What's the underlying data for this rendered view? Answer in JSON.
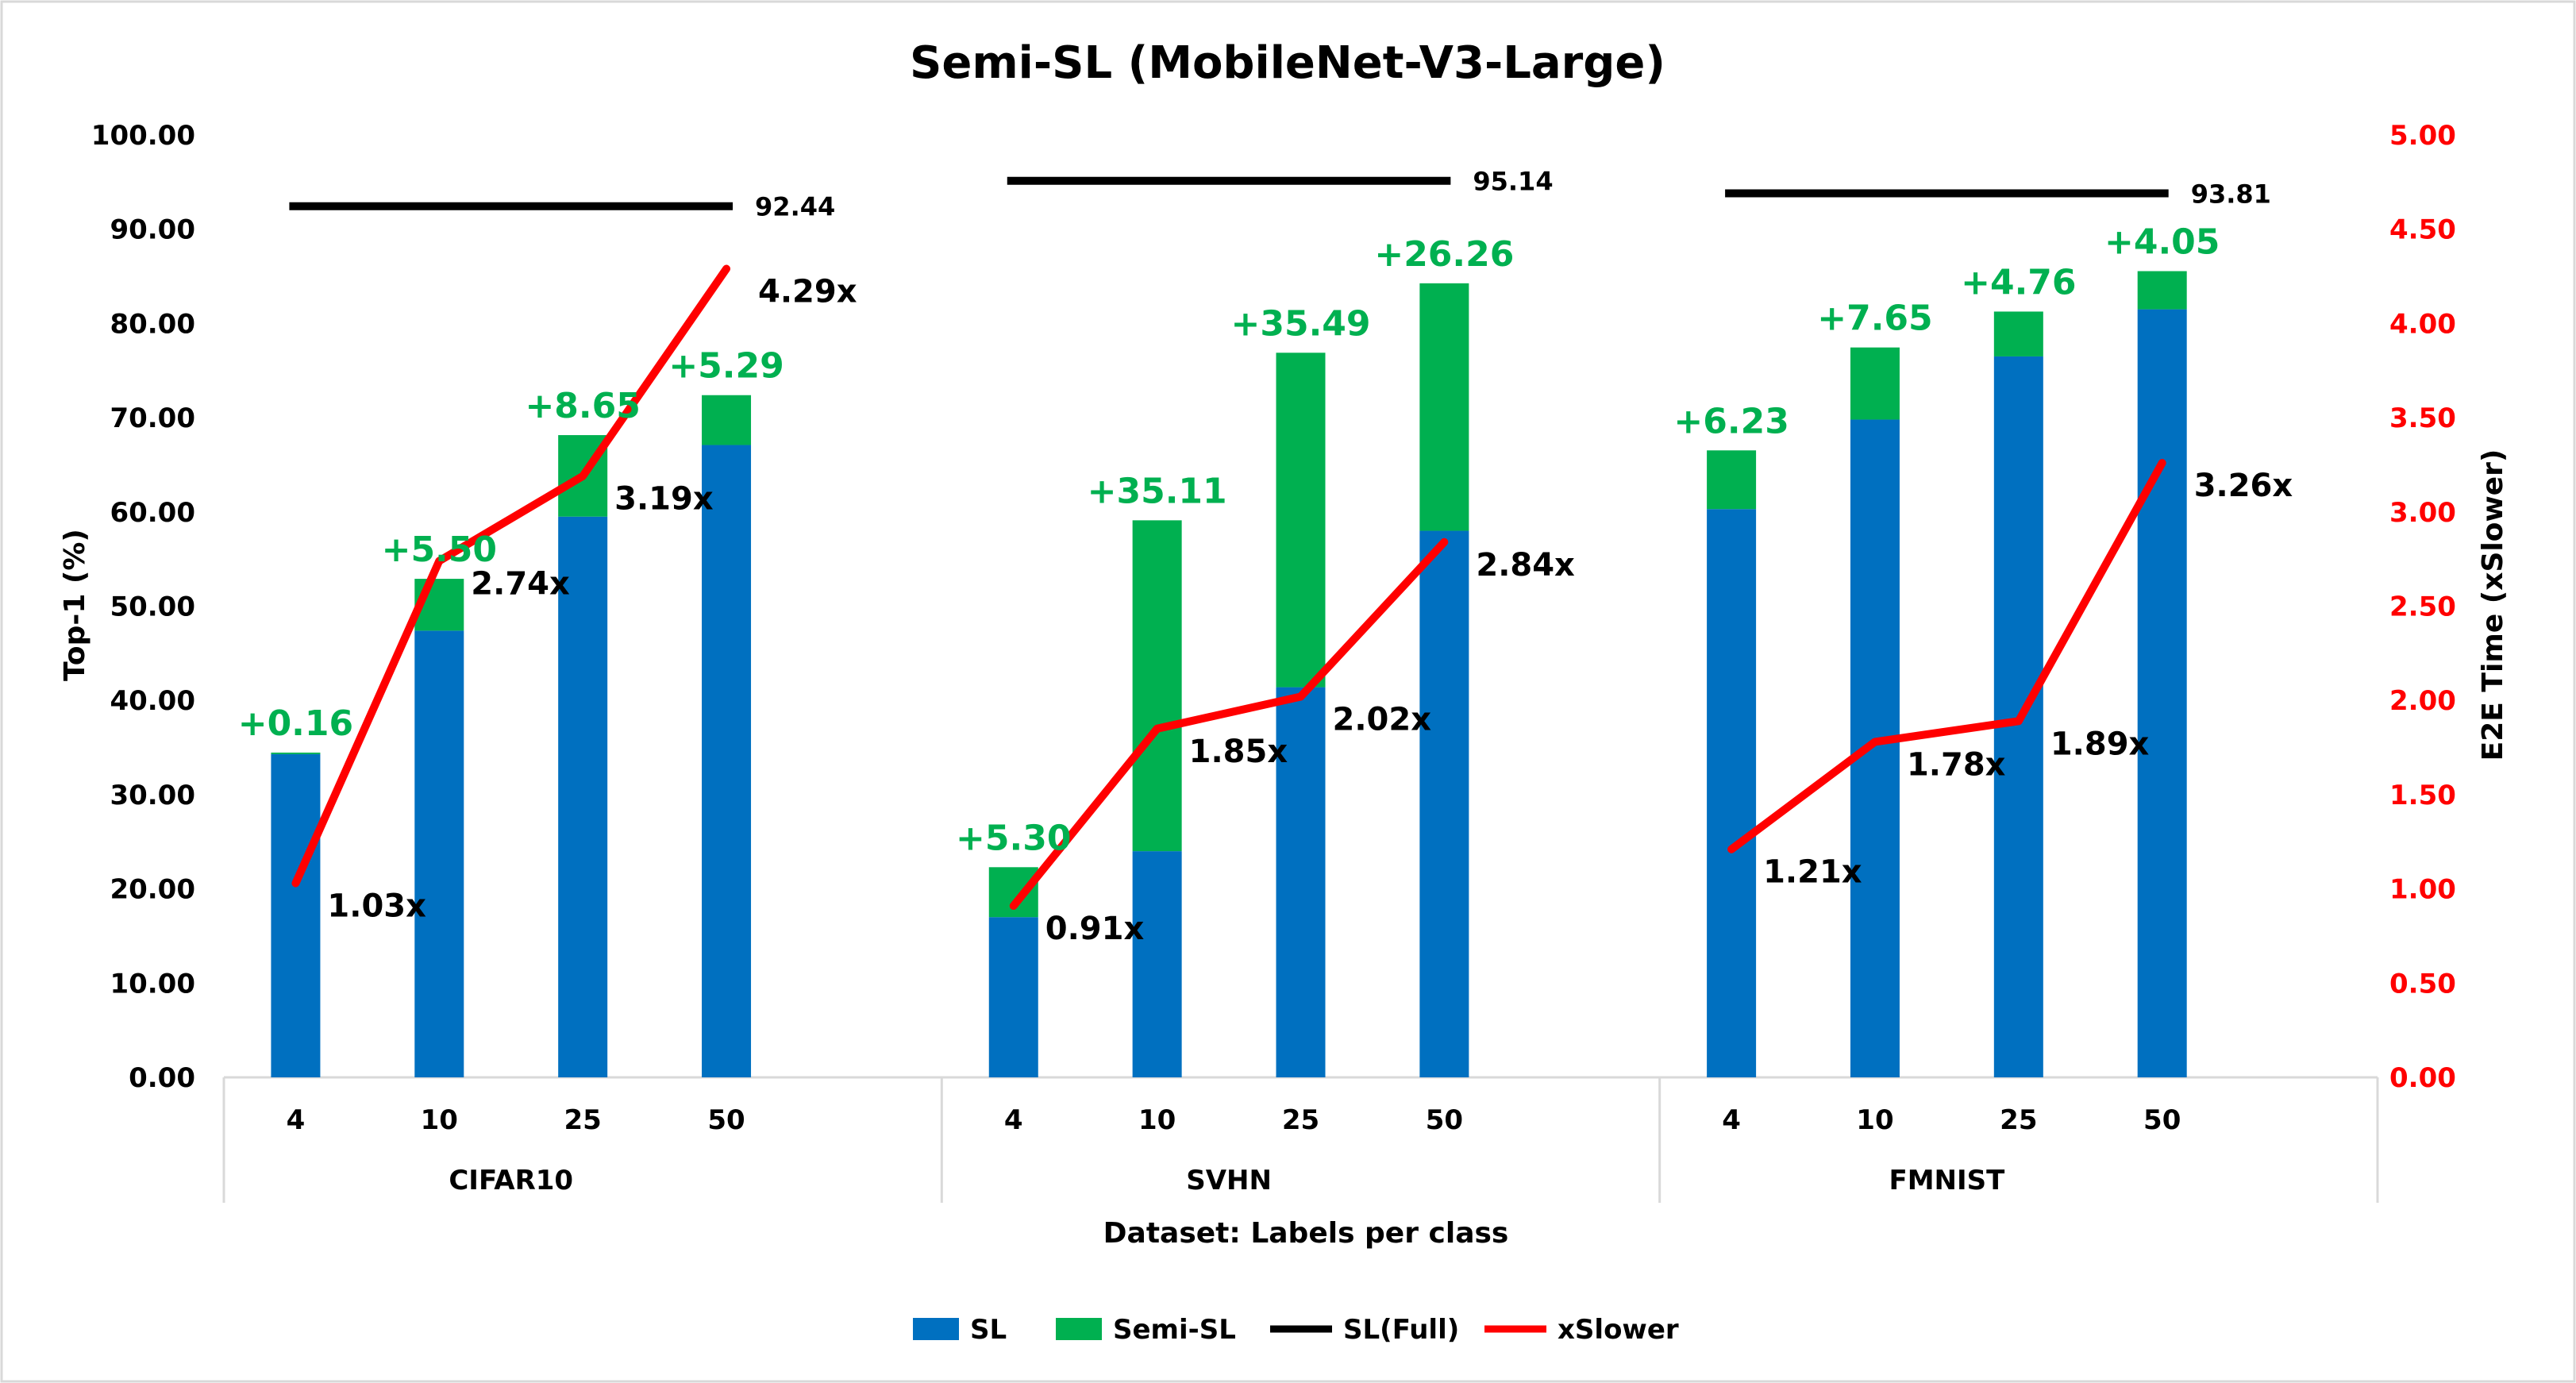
{
  "chart_data": {
    "type": "bar",
    "title": "Semi-SL (MobileNet-V3-Large)",
    "xlabel": "Dataset: Labels per class",
    "ylabel": "Top-1 (%)",
    "y2label": "E2E Time (xSlower)",
    "ylim": [
      0,
      100
    ],
    "y2lim": [
      0,
      5
    ],
    "yticks": [
      "0.00",
      "10.00",
      "20.00",
      "30.00",
      "40.00",
      "50.00",
      "60.00",
      "70.00",
      "80.00",
      "90.00",
      "100.00"
    ],
    "y2ticks": [
      "0.00",
      "0.50",
      "1.00",
      "1.50",
      "2.00",
      "2.50",
      "3.00",
      "3.50",
      "4.00",
      "4.50",
      "5.00"
    ],
    "grid": false,
    "legend_position": "bottom",
    "legend": [
      {
        "name": "SL",
        "color": "#0070c0",
        "kind": "bar"
      },
      {
        "name": "Semi-SL",
        "color": "#00b050",
        "kind": "bar"
      },
      {
        "name": "SL(Full)",
        "color": "#000000",
        "kind": "line"
      },
      {
        "name": "xSlower",
        "color": "#ff0000",
        "kind": "line"
      }
    ],
    "groups": [
      {
        "name": "CIFAR10",
        "categories": [
          "4",
          "10",
          "25",
          "50"
        ],
        "sl": [
          34.3,
          47.4,
          59.5,
          67.1
        ],
        "semi_sl": [
          0.16,
          5.5,
          8.65,
          5.29
        ],
        "gain_labels": [
          "+0.16",
          "+5.50",
          "+8.65",
          "+5.29"
        ],
        "xslower": [
          1.03,
          2.74,
          3.19,
          4.29
        ],
        "xslower_labels": [
          "1.03x",
          "2.74x",
          "3.19x",
          "4.29x"
        ],
        "sl_full": 92.44,
        "sl_full_label": "92.44"
      },
      {
        "name": "SVHN",
        "categories": [
          "4",
          "10",
          "25",
          "50"
        ],
        "sl": [
          17.0,
          24.0,
          41.4,
          58.0
        ],
        "semi_sl": [
          5.3,
          35.11,
          35.49,
          26.26
        ],
        "gain_labels": [
          "+5.30",
          "+35.11",
          "+35.49",
          "+26.26"
        ],
        "xslower": [
          0.91,
          1.85,
          2.02,
          2.84
        ],
        "xslower_labels": [
          "0.91x",
          "1.85x",
          "2.02x",
          "2.84x"
        ],
        "sl_full": 95.14,
        "sl_full_label": "95.14"
      },
      {
        "name": "FMNIST",
        "categories": [
          "4",
          "10",
          "25",
          "50"
        ],
        "sl": [
          60.3,
          69.8,
          76.5,
          81.5
        ],
        "semi_sl": [
          6.23,
          7.65,
          4.76,
          4.05
        ],
        "gain_labels": [
          "+6.23",
          "+7.65",
          "+4.76",
          "+4.05"
        ],
        "xslower": [
          1.21,
          1.78,
          1.89,
          3.26
        ],
        "xslower_labels": [
          "1.21x",
          "1.78x",
          "1.89x",
          "3.26x"
        ],
        "sl_full": 93.81,
        "sl_full_label": "93.81"
      }
    ],
    "colors": {
      "sl": "#0070c0",
      "semi_sl": "#00b050",
      "sl_full": "#000000",
      "xslower": "#ff0000",
      "axis": "#d9d9d9"
    }
  }
}
